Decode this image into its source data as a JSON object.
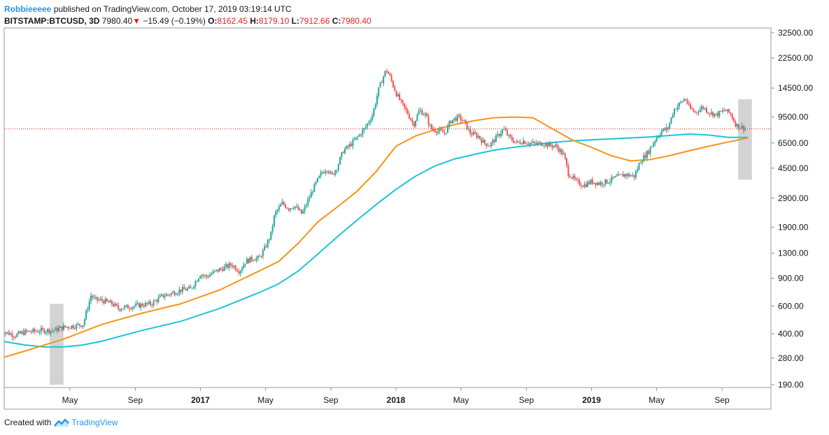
{
  "header": {
    "author": "Robbieeeee",
    "published_text": "published on TradingView.com, October 17, 2019 03:19:14 UTC",
    "symbol": "BITSTAMP:BTCUSD, 3D",
    "last_price": "7980.40",
    "arrow": "▼",
    "change": "−15.49 (−0.19%)",
    "open_label": "O:",
    "open_value": "8162.45",
    "high_label": "H:",
    "high_value": "8179.10",
    "low_label": "L:",
    "low_value": "7912.66",
    "close_label": "C:",
    "close_value": "7980.40"
  },
  "footer": {
    "created_with": "Created with",
    "brand": "TradingView"
  },
  "colors": {
    "up": "#26a69a",
    "down": "#ef5350",
    "ma_orange": "#f7931a",
    "ma_cyan": "#1ec3d6",
    "last_price_line": "#e91e1e",
    "highlight": "#c8c8c8"
  },
  "chart_data": {
    "type": "line",
    "scale": "log",
    "y_ticks": [
      "32500.00",
      "22500.00",
      "14500.00",
      "9500.00",
      "6500.00",
      "4500.00",
      "2900.00",
      "1900.00",
      "1300.00",
      "900.00",
      "600.00",
      "400.00",
      "280.00",
      "190.00"
    ],
    "x_ticks": [
      {
        "label": "May",
        "date": 2016.333,
        "bold": false
      },
      {
        "label": "Sep",
        "date": 2016.667,
        "bold": false
      },
      {
        "label": "2017",
        "date": 2017.0,
        "bold": true
      },
      {
        "label": "May",
        "date": 2017.333,
        "bold": false
      },
      {
        "label": "Sep",
        "date": 2017.667,
        "bold": false
      },
      {
        "label": "2018",
        "date": 2018.0,
        "bold": true
      },
      {
        "label": "May",
        "date": 2018.333,
        "bold": false
      },
      {
        "label": "Sep",
        "date": 2018.667,
        "bold": false
      },
      {
        "label": "2019",
        "date": 2019.0,
        "bold": true
      },
      {
        "label": "May",
        "date": 2019.333,
        "bold": false
      },
      {
        "label": "Sep",
        "date": 2019.667,
        "bold": false
      }
    ],
    "price_series": {
      "name": "BTCUSD",
      "x": [
        2015.98,
        2016.05,
        2016.1,
        2016.15,
        2016.2,
        2016.25,
        2016.3,
        2016.36,
        2016.4,
        2016.44,
        2016.46,
        2016.5,
        2016.55,
        2016.58,
        2016.62,
        2016.66,
        2016.7,
        2016.75,
        2016.8,
        2016.85,
        2016.9,
        2016.95,
        2017.0,
        2017.03,
        2017.08,
        2017.12,
        2017.16,
        2017.2,
        2017.23,
        2017.27,
        2017.3,
        2017.33,
        2017.36,
        2017.38,
        2017.42,
        2017.45,
        2017.48,
        2017.52,
        2017.55,
        2017.58,
        2017.62,
        2017.65,
        2017.67,
        2017.7,
        2017.73,
        2017.76,
        2017.8,
        2017.84,
        2017.88,
        2017.91,
        2017.93,
        2017.95,
        2017.97,
        2018.0,
        2018.03,
        2018.06,
        2018.09,
        2018.12,
        2018.15,
        2018.18,
        2018.21,
        2018.25,
        2018.28,
        2018.32,
        2018.35,
        2018.38,
        2018.42,
        2018.45,
        2018.48,
        2018.52,
        2018.55,
        2018.58,
        2018.62,
        2018.65,
        2018.68,
        2018.72,
        2018.75,
        2018.78,
        2018.82,
        2018.86,
        2018.88,
        2018.92,
        2018.96,
        2019.0,
        2019.04,
        2019.08,
        2019.12,
        2019.17,
        2019.22,
        2019.25,
        2019.29,
        2019.33,
        2019.36,
        2019.39,
        2019.42,
        2019.45,
        2019.48,
        2019.5,
        2019.53,
        2019.57,
        2019.6,
        2019.64,
        2019.68,
        2019.71,
        2019.74,
        2019.77,
        2019.79
      ],
      "y": [
        420,
        390,
        410,
        415,
        420,
        420,
        440,
        450,
        460,
        700,
        660,
        650,
        620,
        580,
        590,
        600,
        610,
        620,
        690,
        720,
        760,
        770,
        960,
        920,
        1000,
        1050,
        1100,
        1000,
        1150,
        1210,
        1200,
        1400,
        1700,
        2300,
        2700,
        2500,
        2600,
        2300,
        2800,
        3400,
        4200,
        4500,
        4000,
        4600,
        5800,
        6200,
        7000,
        8000,
        9800,
        14000,
        16500,
        19000,
        17000,
        13500,
        11500,
        10000,
        8500,
        10500,
        9800,
        8000,
        7800,
        7500,
        9000,
        9500,
        8800,
        7500,
        7200,
        6500,
        6300,
        7200,
        8000,
        7000,
        6500,
        6700,
        6500,
        6400,
        6500,
        6300,
        6200,
        5400,
        4200,
        3700,
        3500,
        3700,
        3600,
        3700,
        3900,
        4100,
        4000,
        5000,
        5700,
        7000,
        7800,
        8000,
        10500,
        11500,
        12500,
        10800,
        10200,
        11000,
        10200,
        9800,
        10500,
        10000,
        8400,
        8200,
        7980
      ]
    },
    "ma_orange": {
      "x": [
        2015.98,
        2016.1,
        2016.3,
        2016.5,
        2016.7,
        2016.9,
        2017.1,
        2017.3,
        2017.4,
        2017.5,
        2017.6,
        2017.7,
        2017.8,
        2017.9,
        2018.0,
        2018.1,
        2018.2,
        2018.3,
        2018.4,
        2018.5,
        2018.6,
        2018.7,
        2018.8,
        2018.9,
        2019.0,
        2019.1,
        2019.2,
        2019.3,
        2019.4,
        2019.5,
        2019.6,
        2019.7,
        2019.8
      ],
      "y": [
        280,
        310,
        370,
        460,
        540,
        620,
        760,
        1000,
        1150,
        1500,
        2050,
        2550,
        3200,
        4300,
        6200,
        7200,
        7900,
        8500,
        9000,
        9400,
        9500,
        9400,
        8000,
        6800,
        6100,
        5400,
        5000,
        5100,
        5400,
        5800,
        6200,
        6600,
        7000
      ]
    },
    "ma_cyan": {
      "x": [
        2015.98,
        2016.1,
        2016.2,
        2016.3,
        2016.4,
        2016.5,
        2016.7,
        2016.9,
        2017.1,
        2017.3,
        2017.4,
        2017.5,
        2017.6,
        2017.7,
        2017.8,
        2017.9,
        2018.0,
        2018.1,
        2018.2,
        2018.3,
        2018.4,
        2018.5,
        2018.6,
        2018.7,
        2018.8,
        2018.9,
        2019.0,
        2019.1,
        2019.2,
        2019.3,
        2019.4,
        2019.5,
        2019.6,
        2019.7,
        2019.8
      ],
      "y": [
        360,
        340,
        330,
        330,
        340,
        360,
        420,
        480,
        580,
        730,
        830,
        1000,
        1280,
        1650,
        2100,
        2650,
        3300,
        4000,
        4650,
        5150,
        5500,
        5850,
        6100,
        6300,
        6550,
        6700,
        6800,
        6900,
        7000,
        7100,
        7250,
        7400,
        7300,
        7050,
        7050
      ]
    },
    "last_price": 7980.4,
    "highlights": [
      {
        "x0": 2016.23,
        "x1": 2016.3,
        "y0": 190,
        "y1": 620
      },
      {
        "x0": 2019.75,
        "x1": 2019.82,
        "y0": 3800,
        "y1": 12300
      }
    ]
  }
}
